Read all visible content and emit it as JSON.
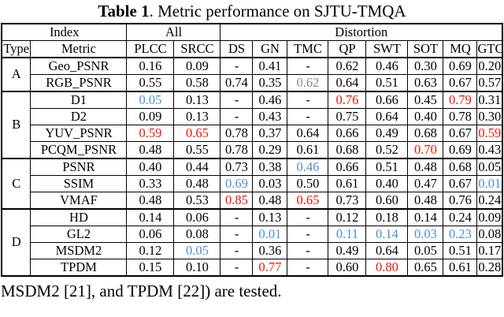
{
  "title": {
    "bold": "Table 1",
    "rest": ". Metric performance on SJTU-TMQA"
  },
  "caption_below": "MSDM2 [21], and TPDM [22]) are tested.",
  "colors": {
    "best_red": "#ee1405",
    "worst_blue": "#4a8fd2",
    "muted_gray": "#8c8c8c"
  },
  "table": {
    "header_groups": [
      {
        "label": "Index",
        "colspan": 2
      },
      {
        "label": "All",
        "colspan": 2
      },
      {
        "label": "Distortion",
        "colspan": 8
      }
    ],
    "columns": [
      "Type",
      "Metric",
      "PLCC",
      "SRCC",
      "DS",
      "GN",
      "TMC",
      "QP",
      "SWT",
      "SOT",
      "MQ",
      "GTC"
    ],
    "groups": [
      {
        "type": "A",
        "rows": [
          {
            "metric": "Geo_PSNR",
            "values": [
              "0.16",
              "0.09",
              "-",
              "0.41",
              "-",
              "0.62",
              "0.46",
              "0.30",
              "0.69",
              "0.20"
            ]
          },
          {
            "metric": "RGB_PSNR",
            "values": [
              "0.55",
              "0.58",
              "0.74",
              "0.35",
              {
                "v": "0.62",
                "c": "gray"
              },
              "0.64",
              "0.51",
              "0.63",
              "0.67",
              "0.57"
            ]
          }
        ]
      },
      {
        "type": "B",
        "rows": [
          {
            "metric": "D1",
            "values": [
              {
                "v": "0.05",
                "c": "blue"
              },
              "0.13",
              "-",
              "0.46",
              "-",
              {
                "v": "0.76",
                "c": "red"
              },
              "0.66",
              "0.45",
              {
                "v": "0.79",
                "c": "red"
              },
              "0.31"
            ]
          },
          {
            "metric": "D2",
            "values": [
              "0.09",
              "0.13",
              "-",
              "0.43",
              "-",
              "0.75",
              "0.64",
              "0.40",
              "0.78",
              "0.30"
            ]
          },
          {
            "metric": "YUV_PSNR",
            "values": [
              {
                "v": "0.59",
                "c": "red"
              },
              {
                "v": "0.65",
                "c": "red"
              },
              "0.78",
              "0.37",
              "0.64",
              "0.66",
              "0.49",
              "0.68",
              "0.67",
              {
                "v": "0.59",
                "c": "red"
              }
            ]
          },
          {
            "metric": "PCQM_PSNR",
            "values": [
              "0.48",
              "0.55",
              "0.78",
              "0.29",
              "0.61",
              "0.68",
              "0.52",
              {
                "v": "0.70",
                "c": "red"
              },
              "0.69",
              "0.43"
            ]
          }
        ]
      },
      {
        "type": "C",
        "rows": [
          {
            "metric": "PSNR",
            "values": [
              "0.40",
              "0.44",
              "0.73",
              "0.38",
              {
                "v": "0.46",
                "c": "blue"
              },
              "0.66",
              "0.51",
              "0.48",
              "0.68",
              "0.05"
            ]
          },
          {
            "metric": "SSIM",
            "values": [
              "0.33",
              "0.48",
              {
                "v": "0.69",
                "c": "blue"
              },
              "0.03",
              "0.50",
              "0.61",
              "0.40",
              "0.47",
              "0.67",
              {
                "v": "0.01",
                "c": "blue"
              }
            ]
          },
          {
            "metric": "VMAF",
            "values": [
              "0.48",
              "0.53",
              {
                "v": "0.85",
                "c": "red"
              },
              "0.48",
              {
                "v": "0.65",
                "c": "red"
              },
              "0.73",
              "0.60",
              "0.48",
              "0.76",
              "0.24"
            ]
          }
        ]
      },
      {
        "type": "D",
        "rows": [
          {
            "metric": "HD",
            "values": [
              "0.14",
              "0.06",
              "-",
              "0.13",
              "-",
              "0.12",
              "0.18",
              "0.14",
              "0.24",
              "0.09"
            ]
          },
          {
            "metric": "GL2",
            "values": [
              "0.06",
              "0.08",
              "-",
              {
                "v": "0.01",
                "c": "blue"
              },
              "-",
              {
                "v": "0.11",
                "c": "blue"
              },
              {
                "v": "0.14",
                "c": "blue"
              },
              {
                "v": "0.03",
                "c": "blue"
              },
              {
                "v": "0.23",
                "c": "blue"
              },
              "0.08"
            ]
          },
          {
            "metric": "MSDM2",
            "values": [
              "0.12",
              {
                "v": "0.05",
                "c": "blue"
              },
              "-",
              "0.36",
              "-",
              "0.49",
              "0.64",
              "0.05",
              "0.51",
              "0.17"
            ]
          },
          {
            "metric": "TPDM",
            "values": [
              "0.15",
              "0.10",
              "-",
              {
                "v": "0.77",
                "c": "red"
              },
              "-",
              "0.60",
              {
                "v": "0.80",
                "c": "red"
              },
              "0.65",
              "0.61",
              "0.28"
            ]
          }
        ]
      }
    ]
  }
}
